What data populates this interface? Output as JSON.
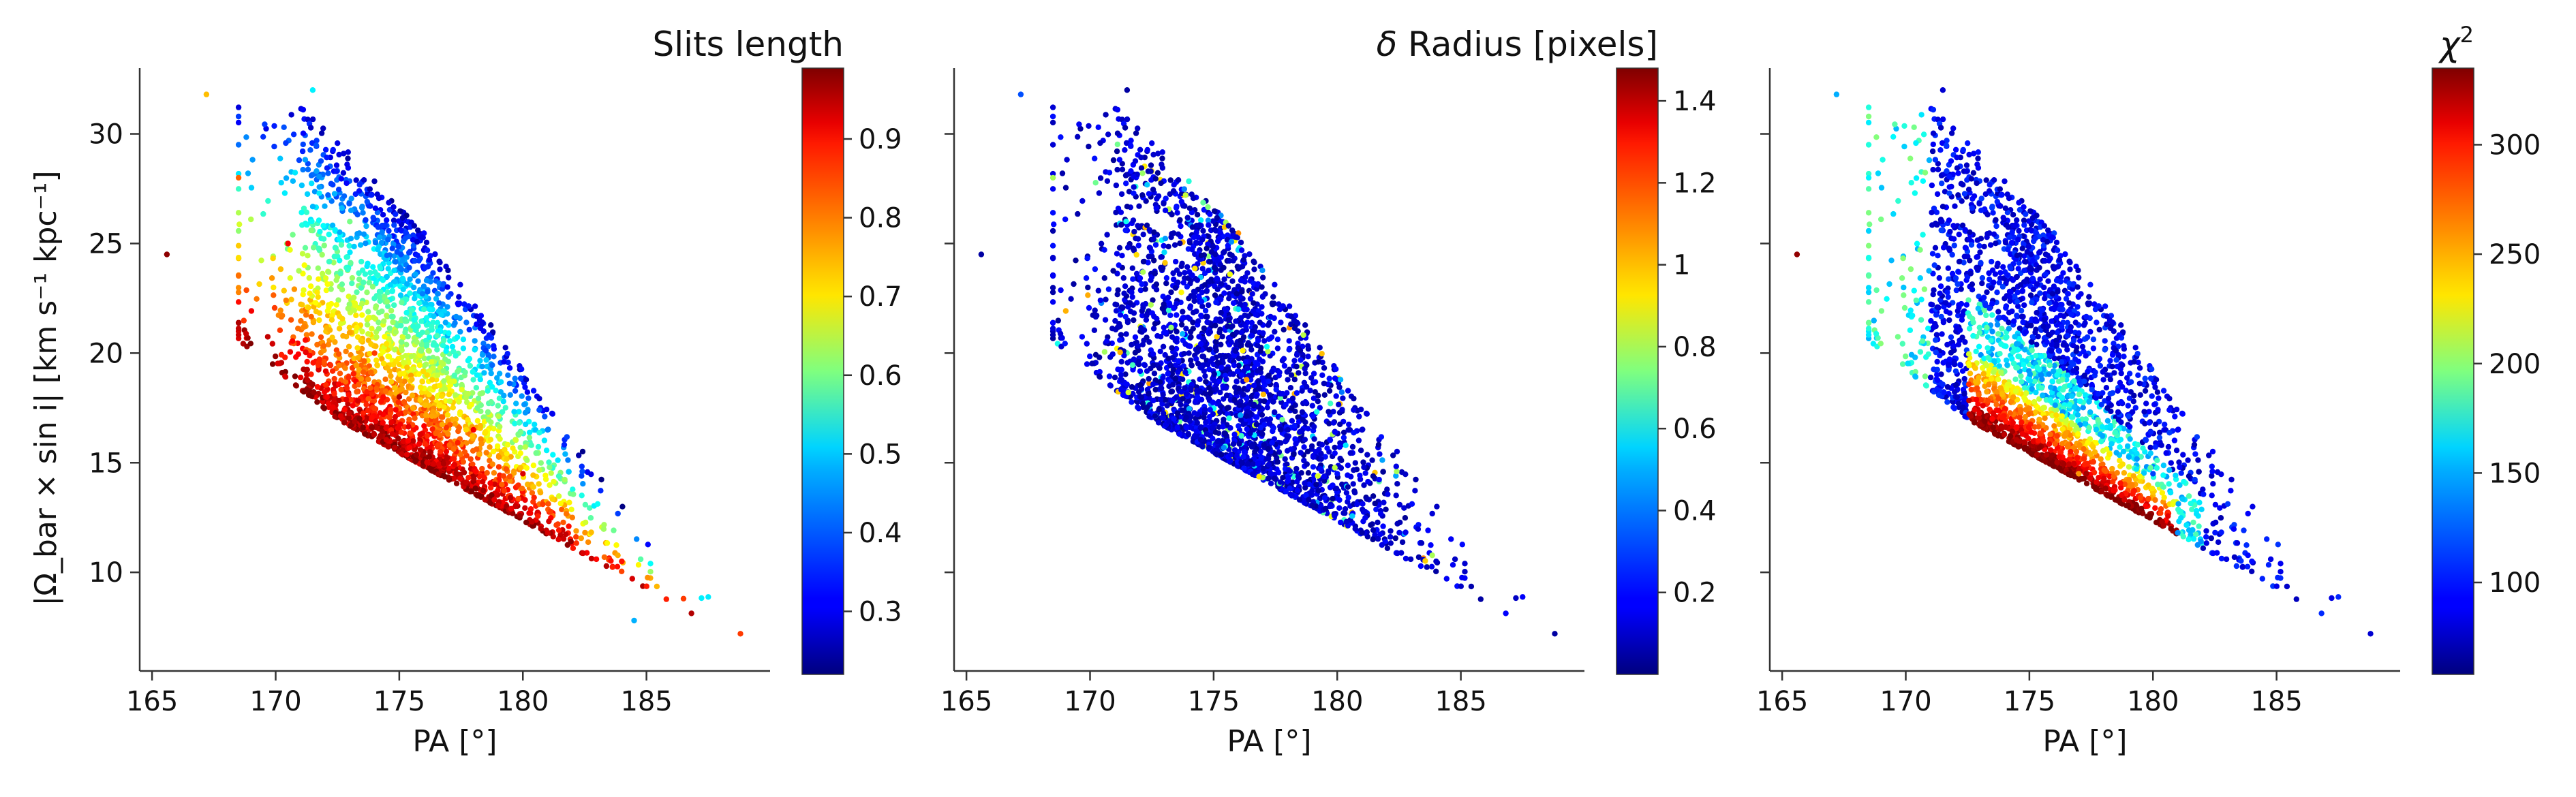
{
  "figure": {
    "ylabel": "|Ω_bar × sin i|   [km s⁻¹ kpc⁻¹]",
    "xlabel": "PA [°]"
  },
  "chart_data": [
    {
      "type": "scatter",
      "title": "",
      "xlabel": "PA [°]",
      "ylabel": "|Ω_bar × sin i|   [km s⁻¹ kpc⁻¹]",
      "xlim": [
        164.5,
        190.0
      ],
      "ylim": [
        5.5,
        33.0
      ],
      "xticks": [
        165,
        170,
        175,
        180,
        185
      ],
      "yticks": [
        10,
        15,
        20,
        25,
        30
      ],
      "colorbar": {
        "label": "Slits length",
        "range": [
          0.22,
          0.99
        ],
        "ticks": [
          0.3,
          0.4,
          0.5,
          0.6,
          0.7,
          0.8,
          0.9
        ],
        "colormap": "jet"
      },
      "trend": "points concentrate along a band descending from about (172, 20) to (186, 9); higher colour values lie on the lower-left edge of the band",
      "sample_points": [
        {
          "x": 165.6,
          "y": 24.5,
          "c": 0.98
        },
        {
          "x": 167.2,
          "y": 31.8,
          "c": 0.75
        },
        {
          "x": 168.5,
          "y": 28.0,
          "c": 0.82
        },
        {
          "x": 170.5,
          "y": 25.0,
          "c": 0.9
        },
        {
          "x": 171.5,
          "y": 32.0,
          "c": 0.5
        },
        {
          "x": 173.0,
          "y": 26.0,
          "c": 0.6
        },
        {
          "x": 174.0,
          "y": 20.0,
          "c": 0.85
        },
        {
          "x": 175.0,
          "y": 18.0,
          "c": 0.95
        },
        {
          "x": 176.0,
          "y": 22.0,
          "c": 0.55
        },
        {
          "x": 178.0,
          "y": 16.5,
          "c": 0.9
        },
        {
          "x": 180.0,
          "y": 14.5,
          "c": 0.92
        },
        {
          "x": 182.0,
          "y": 12.5,
          "c": 0.8
        },
        {
          "x": 184.0,
          "y": 10.5,
          "c": 0.88
        },
        {
          "x": 184.5,
          "y": 7.8,
          "c": 0.45
        },
        {
          "x": 186.5,
          "y": 8.8,
          "c": 0.85
        },
        {
          "x": 188.8,
          "y": 7.2,
          "c": 0.85
        }
      ]
    },
    {
      "type": "scatter",
      "title": "",
      "xlabel": "PA [°]",
      "ylabel": "",
      "xlim": [
        164.5,
        190.0
      ],
      "ylim": [
        5.5,
        33.0
      ],
      "xticks": [
        165,
        170,
        175,
        180,
        185
      ],
      "yticks": [
        10,
        15,
        20,
        25,
        30
      ],
      "colorbar": {
        "label": "δ Radius [pixels]",
        "range": [
          0.0,
          1.48
        ],
        "ticks": [
          0.2,
          0.4,
          0.6,
          0.8,
          1.0,
          1.2,
          1.4
        ],
        "colormap": "jet"
      },
      "trend": "same point cloud as the first panel; almost all points near the minimum of the colour scale (dark blue), a scattering of cyan/yellow outliers",
      "sample_points": [
        {
          "x": 165.6,
          "y": 24.5,
          "c": 0.05
        },
        {
          "x": 167.2,
          "y": 31.8,
          "c": 0.3
        },
        {
          "x": 168.5,
          "y": 28.0,
          "c": 0.8
        },
        {
          "x": 171.5,
          "y": 32.0,
          "c": 0.05
        },
        {
          "x": 174.0,
          "y": 20.0,
          "c": 0.1
        },
        {
          "x": 176.0,
          "y": 22.0,
          "c": 0.5
        },
        {
          "x": 178.0,
          "y": 16.5,
          "c": 0.1
        },
        {
          "x": 180.0,
          "y": 14.5,
          "c": 0.2
        },
        {
          "x": 184.0,
          "y": 10.5,
          "c": 0.1
        },
        {
          "x": 188.8,
          "y": 7.2,
          "c": 0.05
        }
      ]
    },
    {
      "type": "scatter",
      "title": "",
      "xlabel": "PA [°]",
      "ylabel": "",
      "xlim": [
        164.5,
        190.0
      ],
      "ylim": [
        5.5,
        33.0
      ],
      "xticks": [
        165,
        170,
        175,
        180,
        185
      ],
      "yticks": [
        10,
        15,
        20,
        25,
        30
      ],
      "colorbar": {
        "label": "χ²",
        "range": [
          58,
          335
        ],
        "ticks": [
          100,
          150,
          200,
          250,
          300
        ],
        "colormap": "jet"
      },
      "trend": "same point cloud; the upper part of the band is dark blue (low χ²), the lower edge near x 173–180 shifts to green, yellow and red",
      "sample_points": [
        {
          "x": 165.6,
          "y": 24.5,
          "c": 330
        },
        {
          "x": 167.2,
          "y": 31.8,
          "c": 140
        },
        {
          "x": 168.5,
          "y": 28.0,
          "c": 160
        },
        {
          "x": 171.5,
          "y": 32.0,
          "c": 80
        },
        {
          "x": 173.5,
          "y": 17.0,
          "c": 300
        },
        {
          "x": 176.0,
          "y": 22.0,
          "c": 90
        },
        {
          "x": 177.0,
          "y": 14.5,
          "c": 260
        },
        {
          "x": 180.0,
          "y": 14.5,
          "c": 110
        },
        {
          "x": 184.0,
          "y": 10.5,
          "c": 95
        },
        {
          "x": 188.8,
          "y": 7.2,
          "c": 80
        }
      ]
    }
  ]
}
